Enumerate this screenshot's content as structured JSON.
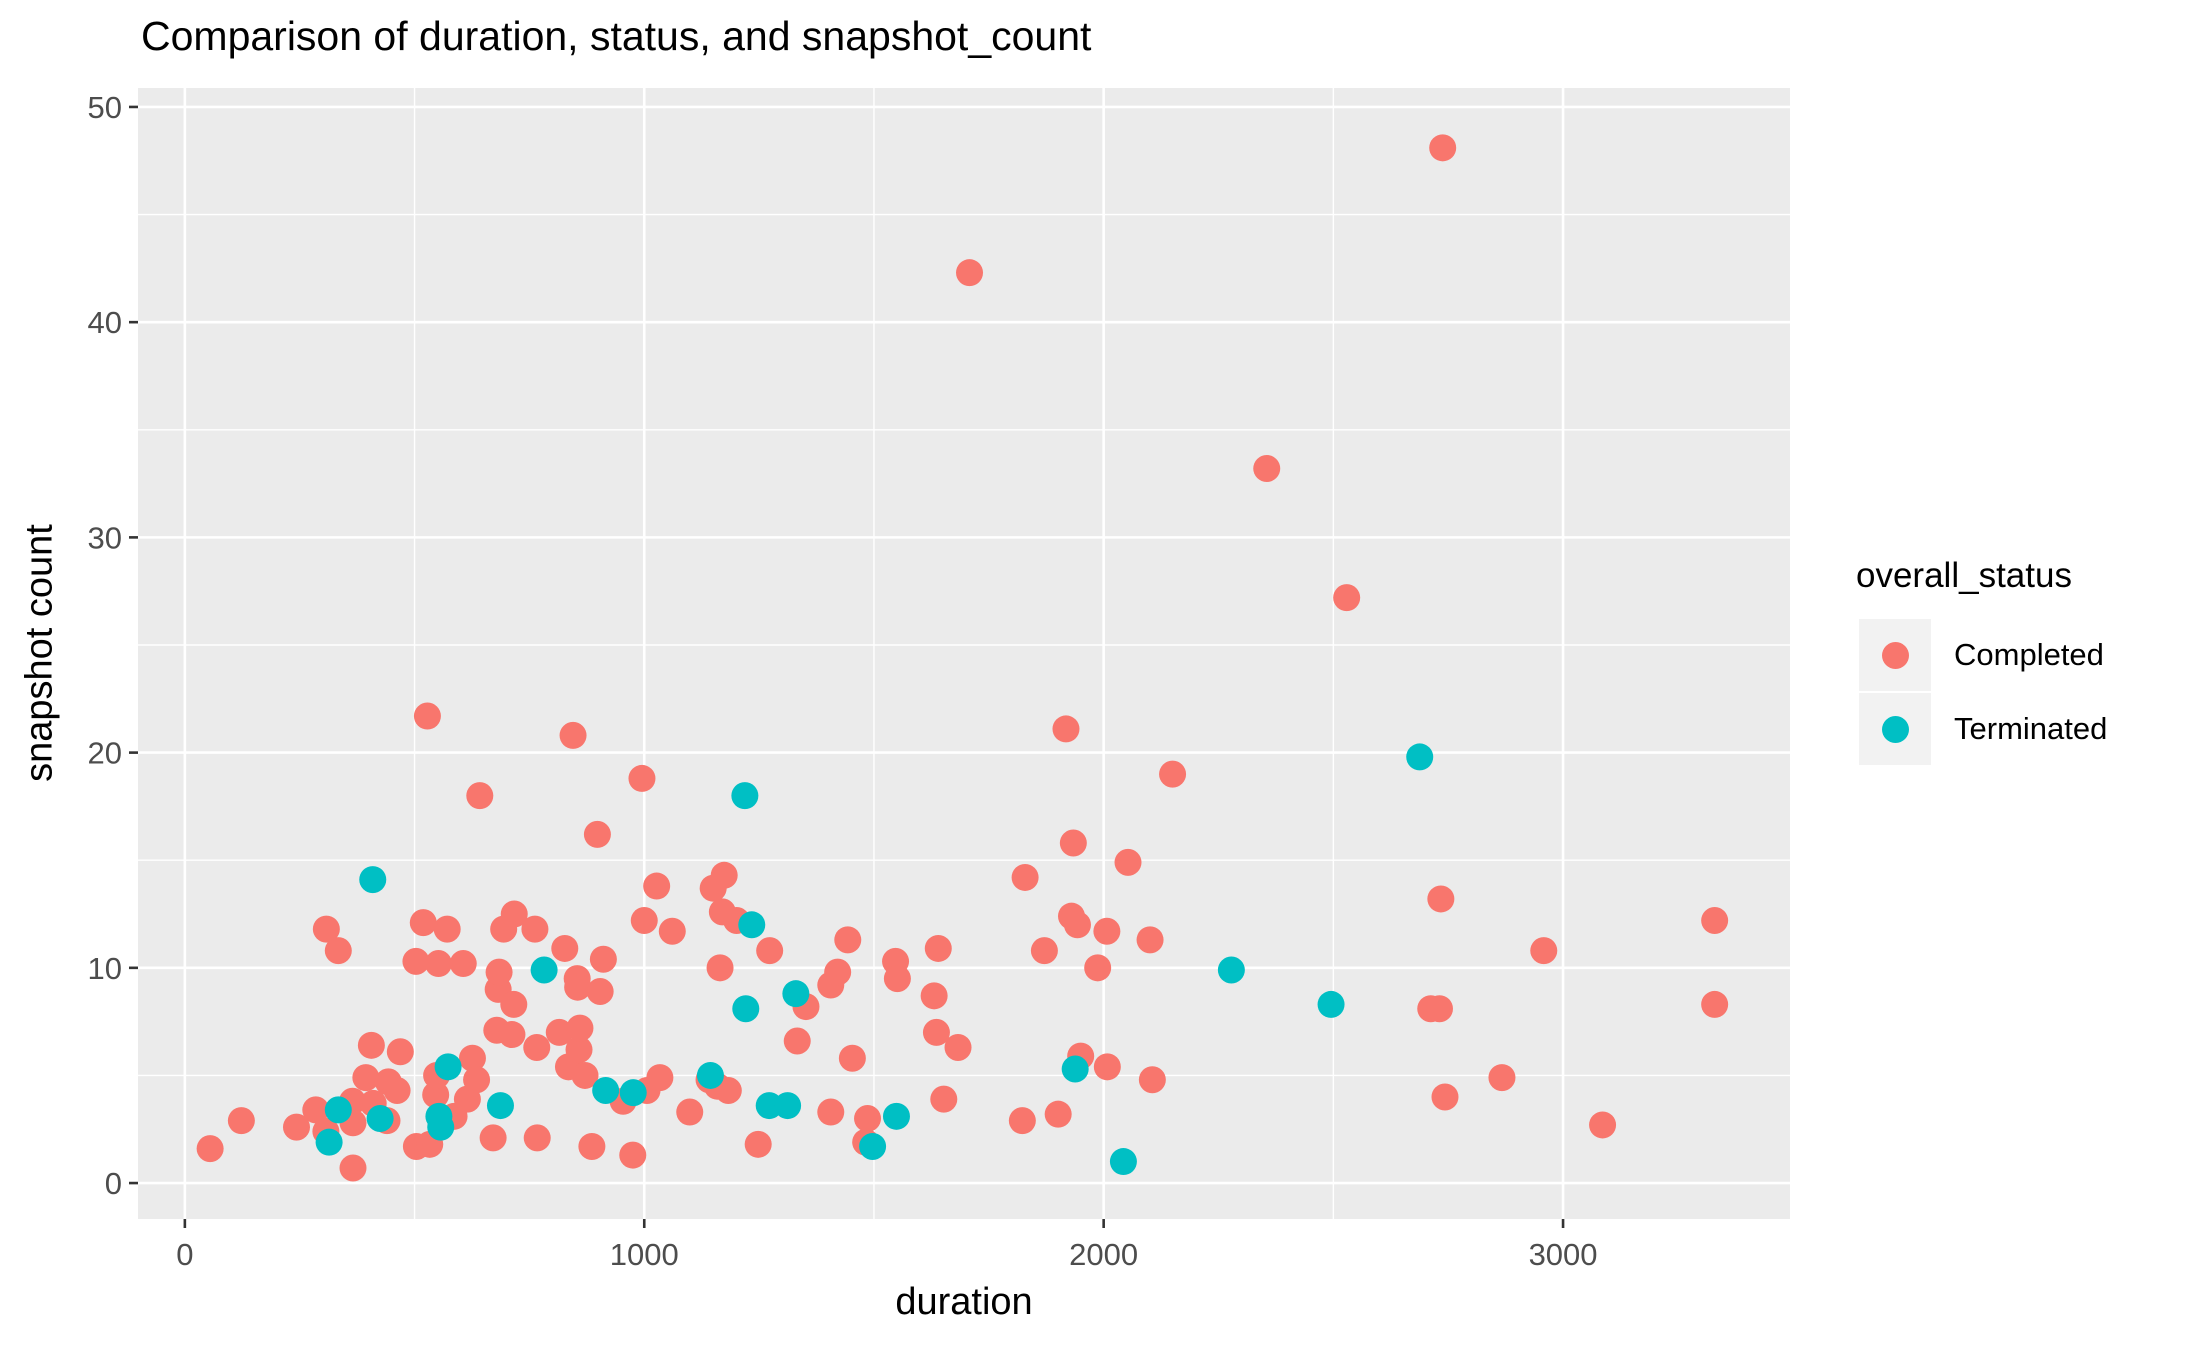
{
  "chart_data": {
    "type": "scatter",
    "title": "Comparison of duration, status, and snapshot_count",
    "xlabel": "duration",
    "ylabel": "snapshot count",
    "legend_title": "overall_status",
    "legend_position": "right",
    "panel_background": "#EBEBEB",
    "gridline_color": "#FFFFFF",
    "tick_color": "#333333",
    "tick_label_color": "#4D4D4D",
    "grid": true,
    "x_ticks": [
      0,
      1000,
      2000,
      3000
    ],
    "x_tick_labels": [
      "0",
      "1000",
      "2000",
      "3000"
    ],
    "y_ticks": [
      0,
      10,
      20,
      30,
      40,
      50
    ],
    "y_tick_labels": [
      "0",
      "10",
      "20",
      "30",
      "40",
      "50"
    ],
    "x_minor_ticks": [
      500,
      1500,
      2500
    ],
    "y_minor_ticks": [
      5,
      15,
      25,
      35,
      45
    ],
    "xlim": [
      -102,
      3494
    ],
    "ylim": [
      -1.67,
      50.88
    ],
    "point_radius": 13.5,
    "series": [
      {
        "name": "Completed",
        "color": "#F8766D",
        "points": [
          [
            55,
            1.6
          ],
          [
            123,
            2.9
          ],
          [
            243,
            2.6
          ],
          [
            285,
            3.4
          ],
          [
            307,
            2.4
          ],
          [
            308,
            11.8
          ],
          [
            334,
            10.8
          ],
          [
            365,
            3.8
          ],
          [
            366,
            2.8
          ],
          [
            366,
            0.7
          ],
          [
            394,
            4.9
          ],
          [
            406,
            6.4
          ],
          [
            410,
            3.7
          ],
          [
            440,
            2.9
          ],
          [
            443,
            4.7
          ],
          [
            462,
            4.3
          ],
          [
            469,
            6.1
          ],
          [
            503,
            10.3
          ],
          [
            504,
            1.7
          ],
          [
            519,
            12.1
          ],
          [
            528,
            21.7
          ],
          [
            533,
            1.8
          ],
          [
            546,
            4.1
          ],
          [
            548,
            5.0
          ],
          [
            552,
            10.2
          ],
          [
            571,
            11.8
          ],
          [
            586,
            3.1
          ],
          [
            606,
            10.2
          ],
          [
            615,
            3.9
          ],
          [
            626,
            5.8
          ],
          [
            635,
            4.8
          ],
          [
            642,
            18.0
          ],
          [
            671,
            2.1
          ],
          [
            679,
            7.1
          ],
          [
            682,
            9.0
          ],
          [
            684,
            9.8
          ],
          [
            694,
            11.8
          ],
          [
            712,
            6.9
          ],
          [
            716,
            8.3
          ],
          [
            717,
            12.5
          ],
          [
            762,
            11.8
          ],
          [
            766,
            6.3
          ],
          [
            767,
            2.1
          ],
          [
            815,
            7.0
          ],
          [
            827,
            10.9
          ],
          [
            835,
            5.4
          ],
          [
            845,
            20.8
          ],
          [
            854,
            9.5
          ],
          [
            855,
            9.1
          ],
          [
            858,
            6.2
          ],
          [
            860,
            7.2
          ],
          [
            871,
            5.0
          ],
          [
            886,
            1.7
          ],
          [
            898,
            16.2
          ],
          [
            904,
            8.9
          ],
          [
            911,
            10.4
          ],
          [
            954,
            3.8
          ],
          [
            975,
            1.3
          ],
          [
            995,
            18.8
          ],
          [
            1000,
            12.2
          ],
          [
            1006,
            4.3
          ],
          [
            1027,
            13.8
          ],
          [
            1034,
            4.9
          ],
          [
            1061,
            11.7
          ],
          [
            1099,
            3.3
          ],
          [
            1141,
            4.8
          ],
          [
            1150,
            13.7
          ],
          [
            1159,
            4.5
          ],
          [
            1165,
            10.0
          ],
          [
            1170,
            12.6
          ],
          [
            1174,
            14.3
          ],
          [
            1183,
            4.3
          ],
          [
            1201,
            12.2
          ],
          [
            1248,
            1.8
          ],
          [
            1273,
            10.8
          ],
          [
            1333,
            6.6
          ],
          [
            1352,
            8.2
          ],
          [
            1406,
            3.3
          ],
          [
            1406,
            9.2
          ],
          [
            1421,
            9.8
          ],
          [
            1443,
            11.3
          ],
          [
            1453,
            5.8
          ],
          [
            1482,
            1.9
          ],
          [
            1486,
            3.0
          ],
          [
            1547,
            10.3
          ],
          [
            1551,
            9.5
          ],
          [
            1631,
            8.7
          ],
          [
            1636,
            7.0
          ],
          [
            1640,
            10.9
          ],
          [
            1652,
            3.9
          ],
          [
            1683,
            6.3
          ],
          [
            1708,
            42.3
          ],
          [
            1823,
            2.9
          ],
          [
            1829,
            14.2
          ],
          [
            1871,
            10.8
          ],
          [
            1901,
            3.2
          ],
          [
            1918,
            21.1
          ],
          [
            1930,
            12.4
          ],
          [
            1934,
            15.8
          ],
          [
            1943,
            12.0
          ],
          [
            1950,
            5.9
          ],
          [
            1987,
            10.0
          ],
          [
            2007,
            11.7
          ],
          [
            2008,
            5.4
          ],
          [
            2053,
            14.9
          ],
          [
            2101,
            11.3
          ],
          [
            2106,
            4.8
          ],
          [
            2150,
            19.0
          ],
          [
            2355,
            33.2
          ],
          [
            2529,
            27.2
          ],
          [
            2712,
            8.1
          ],
          [
            2731,
            8.1
          ],
          [
            2734,
            13.2
          ],
          [
            2738,
            48.1
          ],
          [
            2743,
            4.0
          ],
          [
            2867,
            4.9
          ],
          [
            2958,
            10.8
          ],
          [
            3086,
            2.7
          ],
          [
            3330,
            12.2
          ],
          [
            3330,
            8.3
          ]
        ]
      },
      {
        "name": "Terminated",
        "color": "#00BFC4",
        "points": [
          [
            314,
            1.9
          ],
          [
            334,
            3.4
          ],
          [
            409,
            14.1
          ],
          [
            425,
            3.0
          ],
          [
            553,
            3.1
          ],
          [
            557,
            2.6
          ],
          [
            573,
            5.4
          ],
          [
            687,
            3.6
          ],
          [
            782,
            9.9
          ],
          [
            916,
            4.3
          ],
          [
            976,
            4.2
          ],
          [
            1144,
            5.0
          ],
          [
            1219,
            18.0
          ],
          [
            1221,
            8.1
          ],
          [
            1234,
            12.0
          ],
          [
            1272,
            3.6
          ],
          [
            1312,
            3.6
          ],
          [
            1330,
            8.8
          ],
          [
            1497,
            1.7
          ],
          [
            1549,
            3.1
          ],
          [
            1938,
            5.3
          ],
          [
            2043,
            1.0
          ],
          [
            2278,
            9.9
          ],
          [
            2495,
            8.3
          ],
          [
            2688,
            19.8
          ]
        ]
      }
    ]
  }
}
